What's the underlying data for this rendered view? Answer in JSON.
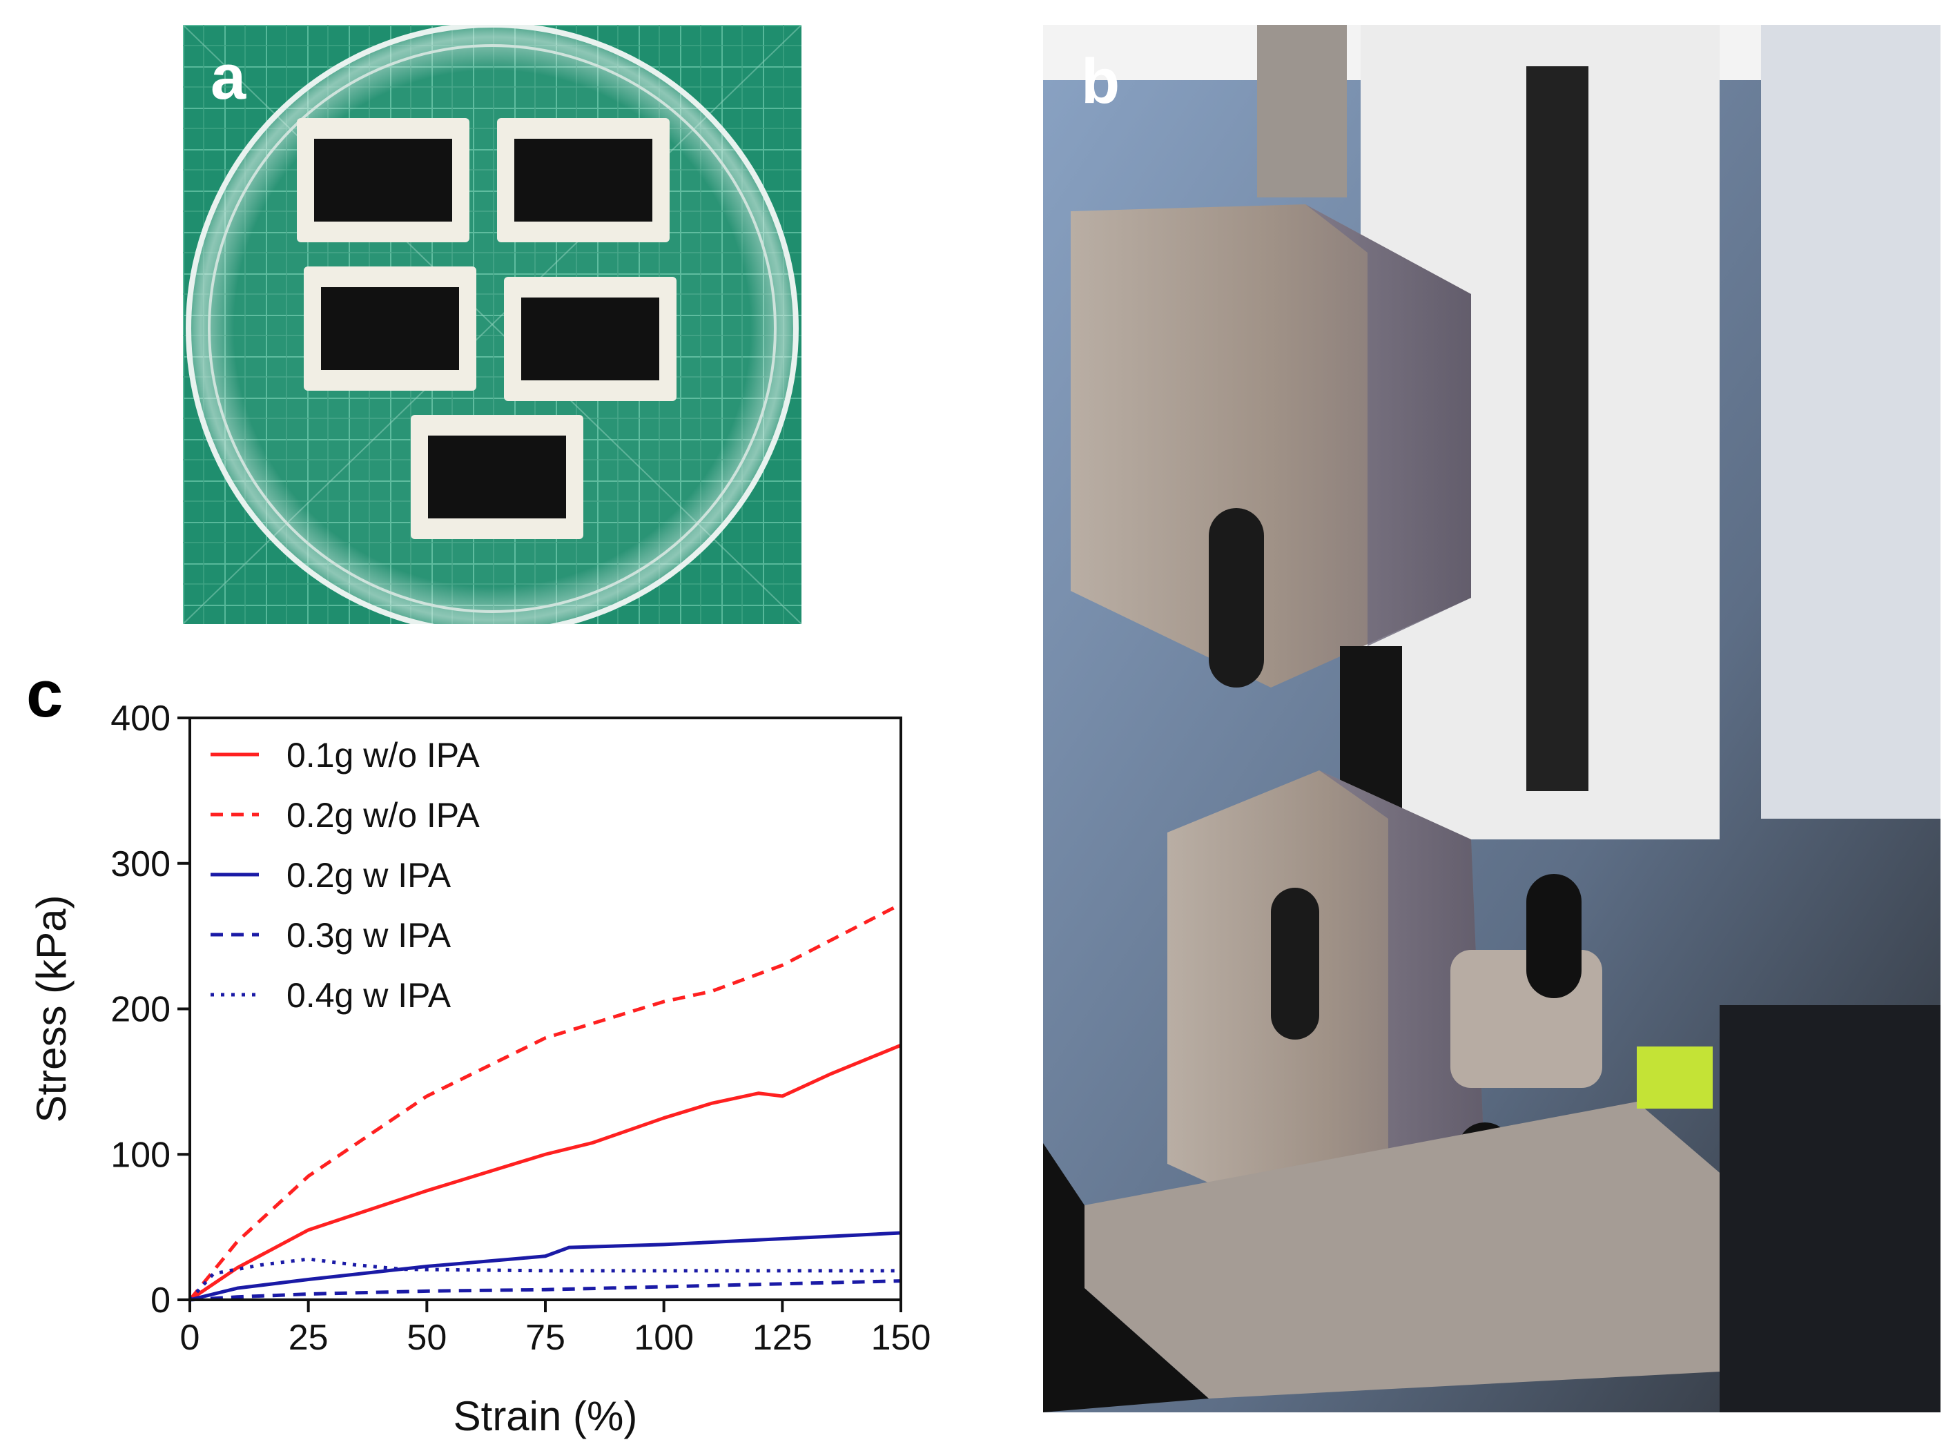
{
  "panels": {
    "a": {
      "letter": "a"
    },
    "b": {
      "letter": "b"
    },
    "c": {
      "letter": "c"
    }
  },
  "colors": {
    "red": "#ff2020",
    "blue": "#1a1aa6",
    "mat_green": "#1f8e6e",
    "grid_line": "#57b89a"
  },
  "chart_data": {
    "type": "line",
    "xlabel": "Strain (%)",
    "ylabel": "Stress (kPa)",
    "xlim": [
      0,
      150
    ],
    "ylim": [
      0,
      400
    ],
    "xticks": [
      0,
      25,
      50,
      75,
      100,
      125,
      150
    ],
    "yticks": [
      0,
      100,
      200,
      300,
      400
    ],
    "legend_position": "top-left",
    "grid": false,
    "series": [
      {
        "name": "0.1g w/o IPA",
        "color": "#ff2020",
        "dash": "solid",
        "x": [
          0,
          10,
          25,
          50,
          75,
          85,
          100,
          110,
          120,
          125,
          135,
          150
        ],
        "y": [
          0,
          22,
          48,
          75,
          100,
          108,
          125,
          135,
          142,
          140,
          155,
          175
        ]
      },
      {
        "name": "0.2g w/o IPA",
        "color": "#ff2020",
        "dash": "dashed",
        "x": [
          0,
          10,
          25,
          50,
          75,
          100,
          110,
          125,
          150
        ],
        "y": [
          0,
          40,
          85,
          140,
          180,
          205,
          212,
          230,
          272
        ]
      },
      {
        "name": "0.2g w IPA",
        "color": "#1a1aa6",
        "dash": "solid",
        "x": [
          0,
          10,
          25,
          50,
          75,
          80,
          100,
          125,
          150
        ],
        "y": [
          0,
          8,
          14,
          23,
          30,
          36,
          38,
          42,
          46
        ]
      },
      {
        "name": "0.3g w IPA",
        "color": "#1a1aa6",
        "dash": "dashed",
        "x": [
          0,
          10,
          25,
          50,
          75,
          100,
          125,
          150
        ],
        "y": [
          0,
          2,
          4,
          6,
          7,
          9,
          11,
          13
        ]
      },
      {
        "name": "0.4g w IPA",
        "color": "#1a1aa6",
        "dash": "dotted",
        "x": [
          0,
          5,
          15,
          25,
          35,
          45,
          75,
          100,
          150
        ],
        "y": [
          0,
          18,
          24,
          28,
          24,
          21,
          20,
          20,
          20
        ]
      }
    ]
  }
}
